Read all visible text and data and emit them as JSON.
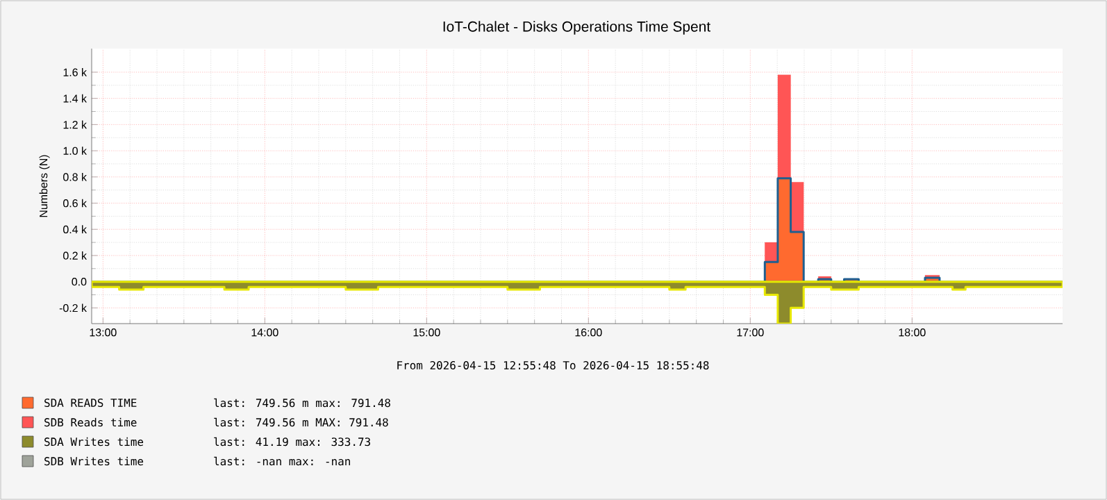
{
  "chart_data": {
    "type": "area",
    "title": "IoT-Chalet -  Disks Operations Time Spent",
    "ylabel": "Numbers (N)",
    "stacked": true,
    "grid": true,
    "legend": "bottom",
    "xlim": [
      12.93,
      18.93
    ],
    "ylim": [
      -320,
      1780
    ],
    "xticks": [
      {
        "value": 13,
        "label": "13:00"
      },
      {
        "value": 14,
        "label": "14:00"
      },
      {
        "value": 15,
        "label": "15:00"
      },
      {
        "value": 16,
        "label": "16:00"
      },
      {
        "value": 17,
        "label": "17:00"
      },
      {
        "value": 18,
        "label": "18:00"
      }
    ],
    "yticks": [
      {
        "value": -200,
        "label": "-0.2 k"
      },
      {
        "value": 0,
        "label": "0.0"
      },
      {
        "value": 200,
        "label": "0.2 k"
      },
      {
        "value": 400,
        "label": "0.4 k"
      },
      {
        "value": 600,
        "label": "0.6 k"
      },
      {
        "value": 800,
        "label": "0.8 k"
      },
      {
        "value": 1000,
        "label": "1.0 k"
      },
      {
        "value": 1200,
        "label": "1.2 k"
      },
      {
        "value": 1400,
        "label": "1.4 k"
      },
      {
        "value": 1600,
        "label": "1.6 k"
      }
    ],
    "series": [
      {
        "name": "SDA READS TIME",
        "color": "#ff6a2f",
        "x": [
          12.93,
          17.09,
          17.17,
          17.25,
          17.33,
          17.42,
          17.5,
          17.58,
          17.67,
          18.08,
          18.17,
          18.93
        ],
        "values": [
          0,
          150,
          790,
          380,
          0,
          20,
          0,
          20,
          0,
          30,
          0,
          0
        ]
      },
      {
        "name": "SDB Reads time",
        "color": "#ff5555",
        "x": [
          12.93,
          17.09,
          17.17,
          17.25,
          17.33,
          17.42,
          17.5,
          17.58,
          17.67,
          18.08,
          18.17,
          18.93
        ],
        "values": [
          0,
          150,
          790,
          380,
          0,
          20,
          0,
          0,
          0,
          20,
          0,
          0
        ]
      },
      {
        "name": "SDA Writes time",
        "color": "#8d8b2c",
        "x": [
          12.93,
          13.1,
          13.25,
          13.43,
          13.6,
          13.75,
          13.9,
          14.1,
          14.3,
          14.5,
          14.7,
          14.9,
          15.1,
          15.3,
          15.5,
          15.7,
          15.9,
          16.1,
          16.3,
          16.5,
          16.6,
          16.8,
          17.0,
          17.09,
          17.17,
          17.25,
          17.33,
          17.5,
          17.67,
          17.9,
          18.1,
          18.25,
          18.33,
          18.6,
          18.75,
          18.93
        ],
        "values": [
          -40,
          -60,
          -40,
          -40,
          -40,
          -60,
          -40,
          -40,
          -40,
          -60,
          -40,
          -40,
          -40,
          -40,
          -60,
          -40,
          -40,
          -40,
          -40,
          -60,
          -40,
          -40,
          -40,
          -100,
          -320,
          -200,
          -40,
          -60,
          -40,
          -40,
          -40,
          -60,
          -40,
          -40,
          -40,
          -40
        ]
      },
      {
        "name": "SDB Writes time",
        "color": "#9fa39a"
      }
    ],
    "annotations": [
      "From 2026-04-15 12:55:48 To 2026-04-15 18:55:48",
      "last:  749.56 m  max:  791.48",
      "last:  749.56 m  MAX:  791.48",
      "last:   41.19    max:  333.73",
      "last:    -nan    max:    -nan"
    ]
  }
}
